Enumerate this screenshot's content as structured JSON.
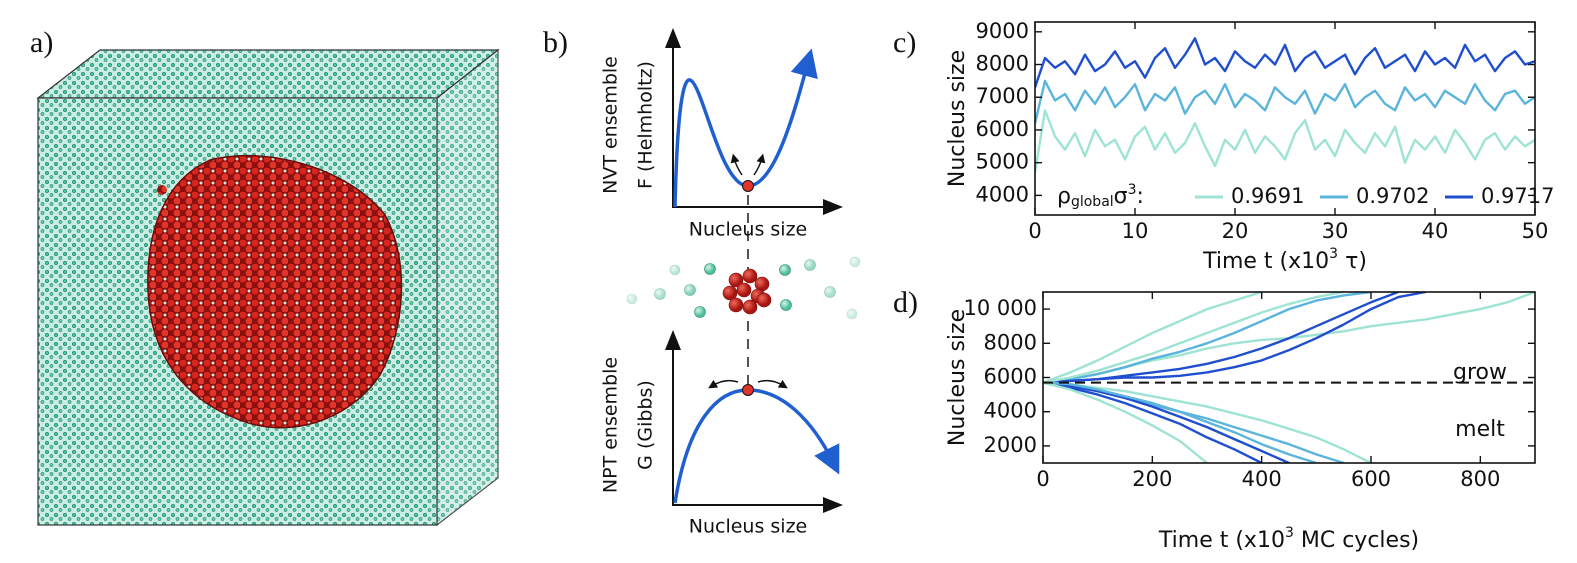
{
  "image": {
    "label": "a)"
  },
  "diagram": {
    "label": "b)",
    "top": {
      "ylabel": [
        "NVT ensemble",
        "F (Helmholtz)"
      ],
      "xlabel": "Nucleus size"
    },
    "bottom": {
      "ylabel": [
        "NPT ensemble",
        "G (Gibbs)"
      ],
      "xlabel": "Nucleus size"
    }
  },
  "chart_data": [
    {
      "type": "line",
      "label": "c)",
      "ylabel": "Nucleus size",
      "xlabel_parts": [
        "Time  t  (x10",
        "3",
        " τ)"
      ],
      "legend_title_parts": [
        "ρ",
        "global",
        "σ",
        "3",
        ":"
      ],
      "legend": "lower center",
      "xlim": [
        0,
        50
      ],
      "xticks": [
        0,
        10,
        20,
        30,
        40,
        50
      ],
      "ylim": [
        3400,
        9300
      ],
      "yticks": [
        4000,
        5000,
        6000,
        7000,
        8000,
        9000
      ],
      "x": [
        0,
        1,
        2,
        3,
        4,
        5,
        6,
        7,
        8,
        9,
        10,
        11,
        12,
        13,
        14,
        15,
        16,
        17,
        18,
        19,
        20,
        21,
        22,
        23,
        24,
        25,
        26,
        27,
        28,
        29,
        30,
        31,
        32,
        33,
        34,
        35,
        36,
        37,
        38,
        39,
        40,
        41,
        42,
        43,
        44,
        45,
        46,
        47,
        48,
        49,
        50
      ],
      "series": [
        {
          "name": "0.9691",
          "color": "#9ee3d3",
          "values": [
            4700,
            6600,
            5800,
            5400,
            5900,
            5200,
            6000,
            5500,
            5700,
            5100,
            5800,
            6100,
            5400,
            5900,
            5300,
            5600,
            6200,
            5500,
            4900,
            5700,
            5400,
            6000,
            5300,
            5800,
            5500,
            5100,
            5900,
            6300,
            5400,
            5700,
            5200,
            6000,
            5600,
            5300,
            5900,
            5500,
            6100,
            5000,
            5700,
            5400,
            5800,
            5300,
            6000,
            5600,
            5100,
            5700,
            5900,
            5400,
            5800,
            5500,
            5700
          ]
        },
        {
          "name": "0.9702",
          "color": "#5ab4dc",
          "values": [
            6200,
            7500,
            6900,
            7100,
            6600,
            7200,
            6800,
            7300,
            6700,
            7000,
            7400,
            6600,
            7100,
            6900,
            7300,
            6500,
            7000,
            7200,
            6800,
            7400,
            6700,
            7100,
            6900,
            6600,
            7300,
            7000,
            6800,
            7200,
            6500,
            7100,
            6900,
            7400,
            6700,
            7000,
            7200,
            6800,
            6600,
            7300,
            6900,
            7100,
            6700,
            7200,
            7000,
            6800,
            7400,
            6900,
            6600,
            7100,
            7200,
            6800,
            7000
          ]
        },
        {
          "name": "0.9717",
          "color": "#1f4fcf",
          "values": [
            7300,
            8200,
            7900,
            8100,
            7700,
            8300,
            7800,
            8000,
            8400,
            7900,
            8100,
            7600,
            8200,
            8500,
            7900,
            8300,
            8800,
            8000,
            8200,
            7800,
            8400,
            8100,
            7900,
            8300,
            8000,
            8600,
            7800,
            8200,
            8400,
            7900,
            8100,
            8300,
            7700,
            8200,
            8500,
            7900,
            8100,
            8300,
            7800,
            8400,
            8000,
            8200,
            7900,
            8600,
            8100,
            8300,
            7800,
            8200,
            8400,
            8000,
            8100
          ]
        }
      ]
    },
    {
      "type": "line",
      "label": "d)",
      "ylabel": "Nucleus size",
      "xlabel_parts": [
        "Time  t  (x10",
        "3",
        " MC cycles)"
      ],
      "annotations": [
        "grow",
        "melt"
      ],
      "reference_line": 5700,
      "xlim": [
        0,
        900
      ],
      "xticks": [
        0,
        200,
        400,
        600,
        800
      ],
      "ylim": [
        1000,
        11000
      ],
      "yticks": [
        2000,
        4000,
        6000,
        8000,
        {
          "value": 10000,
          "label": "10 000"
        }
      ],
      "series": [
        {
          "color": "#9ee3d3",
          "x": [
            0,
            50,
            100,
            150,
            200,
            250,
            300,
            350,
            400,
            450,
            500,
            550,
            600,
            650,
            700,
            750,
            800,
            850,
            900
          ],
          "values": [
            5700,
            5900,
            6200,
            6600,
            7000,
            7300,
            7700,
            8000,
            8200,
            8300,
            8500,
            8700,
            9000,
            9200,
            9400,
            9700,
            10000,
            10400,
            11000
          ]
        },
        {
          "color": "#9ee3d3",
          "x": [
            0,
            50,
            100,
            150,
            200,
            250,
            300,
            350,
            400
          ],
          "values": [
            5700,
            6300,
            7000,
            7800,
            8600,
            9300,
            10000,
            10500,
            11000
          ]
        },
        {
          "color": "#5ab4dc",
          "x": [
            0,
            50,
            100,
            150,
            200,
            250,
            300,
            350,
            400,
            450,
            500,
            550,
            600
          ],
          "values": [
            5700,
            5900,
            6200,
            6600,
            7100,
            7500,
            8000,
            8600,
            9300,
            10000,
            10500,
            10800,
            11000
          ]
        },
        {
          "color": "#1f4fcf",
          "x": [
            0,
            50,
            100,
            150,
            200,
            250,
            300,
            350,
            400,
            450,
            500,
            550,
            600,
            650
          ],
          "values": [
            5700,
            5800,
            5900,
            6100,
            6300,
            6500,
            6800,
            7200,
            7700,
            8300,
            9000,
            9700,
            10400,
            11000
          ]
        },
        {
          "color": "#1f4fcf",
          "x": [
            0,
            50,
            100,
            150,
            200,
            250,
            300,
            350,
            400,
            450,
            500,
            550,
            600,
            650,
            700
          ],
          "values": [
            5700,
            5800,
            5900,
            6000,
            6000,
            6100,
            6300,
            6600,
            7000,
            7600,
            8300,
            9100,
            10000,
            10700,
            11000
          ]
        },
        {
          "color": "#9ee3d3",
          "x": [
            0,
            50,
            100,
            150,
            200,
            250,
            300,
            350,
            400,
            450,
            500,
            550
          ],
          "values": [
            5700,
            6000,
            6400,
            6900,
            7400,
            8000,
            8600,
            9200,
            9800,
            10300,
            10700,
            11000
          ]
        },
        {
          "color": "#9ee3d3",
          "x": [
            0,
            50,
            100,
            150,
            200,
            250,
            300,
            350,
            400,
            450,
            500,
            550,
            600
          ],
          "values": [
            5700,
            5600,
            5400,
            5200,
            4900,
            4600,
            4300,
            3900,
            3500,
            3000,
            2500,
            1800,
            1000
          ]
        },
        {
          "color": "#5ab4dc",
          "x": [
            0,
            50,
            100,
            150,
            200,
            250,
            300,
            350,
            400,
            450,
            500,
            550
          ],
          "values": [
            5700,
            5500,
            5200,
            4800,
            4400,
            4000,
            3600,
            3100,
            2600,
            2100,
            1500,
            1000
          ]
        },
        {
          "color": "#1f4fcf",
          "x": [
            0,
            50,
            100,
            150,
            200,
            250,
            300,
            350,
            400
          ],
          "values": [
            5700,
            5400,
            5000,
            4500,
            3900,
            3300,
            2500,
            1800,
            1000
          ]
        },
        {
          "color": "#1f4fcf",
          "x": [
            0,
            50,
            100,
            150,
            200,
            250,
            300,
            350,
            400,
            450
          ],
          "values": [
            5700,
            5500,
            5200,
            4800,
            4300,
            3700,
            3100,
            2400,
            1700,
            1000
          ]
        },
        {
          "color": "#5ab4dc",
          "x": [
            0,
            50,
            100,
            150,
            200,
            250,
            300,
            350,
            400,
            450,
            500
          ],
          "values": [
            5700,
            5600,
            5300,
            4900,
            4500,
            4000,
            3400,
            2800,
            2100,
            1500,
            1000
          ]
        },
        {
          "color": "#9ee3d3",
          "x": [
            0,
            50,
            100,
            150,
            200,
            250,
            300
          ],
          "values": [
            5700,
            5300,
            4700,
            4000,
            3200,
            2300,
            1000
          ]
        }
      ]
    }
  ]
}
